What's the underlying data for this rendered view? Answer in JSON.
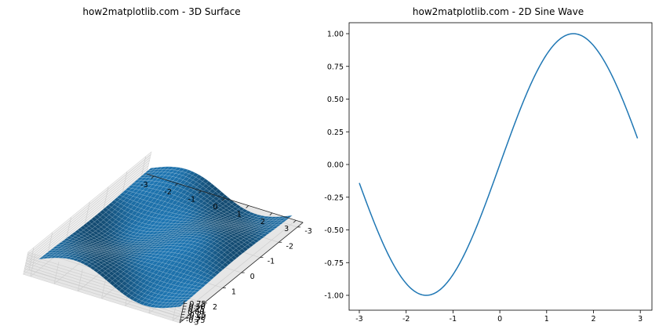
{
  "chart_data": [
    {
      "type": "surface",
      "title": "how2matplotlib.com - 3D Surface",
      "function": "z = sin(x) * cos(y)",
      "x_range": [
        -3,
        3
      ],
      "y_range": [
        -3,
        3
      ],
      "x_ticks": [
        "-3",
        "-2",
        "-1",
        "0",
        "1",
        "2",
        "3"
      ],
      "y_ticks": [
        "-3",
        "-2",
        "-1",
        "0",
        "1",
        "2",
        "3"
      ],
      "z_ticks": [
        "-0.75",
        "-0.50",
        "-0.25",
        "0.00",
        "0.25",
        "0.50",
        "0.75"
      ],
      "zlim": [
        -1,
        1
      ],
      "grid": true,
      "color": "#1f77b4"
    },
    {
      "type": "line",
      "title": "how2matplotlib.com - 2D Sine Wave",
      "function": "y = sin(x)",
      "xlim": [
        -3,
        2.94
      ],
      "ylim": [
        -1,
        1
      ],
      "x_ticks": [
        "-3",
        "-2",
        "-1",
        "0",
        "1",
        "2",
        "3"
      ],
      "y_ticks": [
        "-1.00",
        "-0.75",
        "-0.50",
        "-0.25",
        "0.00",
        "0.25",
        "0.50",
        "0.75",
        "1.00"
      ],
      "series": [
        {
          "color": "#1f77b4",
          "x": [
            -3.0,
            -2.75,
            -2.5,
            -2.25,
            -2.0,
            -1.75,
            -1.5708,
            -1.5,
            -1.25,
            -1.0,
            -0.75,
            -0.5,
            -0.25,
            0.0,
            0.25,
            0.5,
            0.75,
            1.0,
            1.25,
            1.5,
            1.5708,
            1.75,
            2.0,
            2.25,
            2.5,
            2.75,
            2.94
          ],
          "y": [
            -0.141,
            -0.382,
            -0.598,
            -0.778,
            -0.909,
            -0.984,
            -1.0,
            -0.997,
            -0.949,
            -0.841,
            -0.682,
            -0.479,
            -0.247,
            0.0,
            0.247,
            0.479,
            0.682,
            0.841,
            0.949,
            0.997,
            1.0,
            0.984,
            0.909,
            0.778,
            0.598,
            0.382,
            0.199
          ]
        }
      ]
    }
  ]
}
